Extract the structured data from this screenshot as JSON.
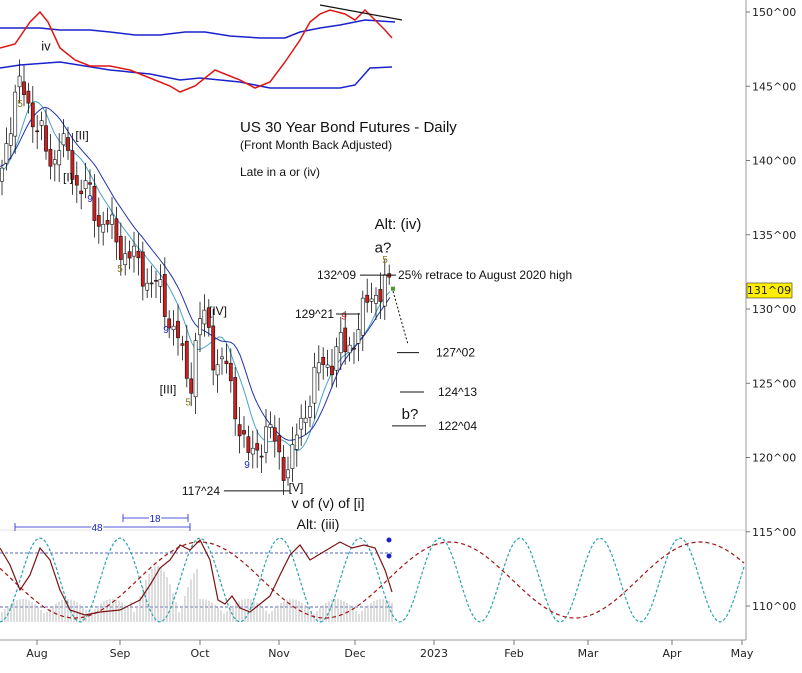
{
  "chart_data": {
    "type": "candlestick",
    "title": "US 30 Year Bond Futures - Daily",
    "subtitle": "(Front Month Back Adjusted)",
    "note": "Late in a or (iv)",
    "price_axis": {
      "min": 108.5,
      "max": 151,
      "ticks": [
        "150^00",
        "145^00",
        "140^00",
        "135^00",
        "130^00",
        "125^00",
        "120^00",
        "115^00",
        "110^00"
      ],
      "tick_values": [
        150,
        145,
        140,
        135,
        130,
        125,
        120,
        115,
        110
      ],
      "current_price_label": "131^09",
      "current_price": 131.28
    },
    "months": [
      "Aug",
      "Sep",
      "Oct",
      "Nov",
      "Dec",
      "2023",
      "Feb",
      "Mar",
      "Apr",
      "May"
    ],
    "price_path": [
      [
        0,
        139
      ],
      [
        6,
        141.5
      ],
      [
        12,
        143
      ],
      [
        18,
        144.5
      ],
      [
        23,
        145
      ],
      [
        30,
        144
      ],
      [
        36,
        142
      ],
      [
        44,
        141
      ],
      [
        52,
        140
      ],
      [
        58,
        141.2
      ],
      [
        64,
        140.5
      ],
      [
        70,
        140
      ],
      [
        78,
        138.5
      ],
      [
        85,
        138
      ],
      [
        92,
        137
      ],
      [
        98,
        136.2
      ],
      [
        104,
        136
      ],
      [
        112,
        135
      ],
      [
        118,
        134.6
      ],
      [
        124,
        134
      ],
      [
        130,
        133.5
      ],
      [
        136,
        133
      ],
      [
        142,
        132.8
      ],
      [
        148,
        132
      ],
      [
        154,
        131.5
      ],
      [
        160,
        131
      ],
      [
        166,
        130.2
      ],
      [
        172,
        129
      ],
      [
        178,
        127.8
      ],
      [
        184,
        126
      ],
      [
        190,
        125
      ],
      [
        196,
        128
      ],
      [
        202,
        129.6
      ],
      [
        208,
        128.5
      ],
      [
        214,
        127
      ],
      [
        220,
        126.4
      ],
      [
        226,
        126
      ],
      [
        232,
        124
      ],
      [
        238,
        123
      ],
      [
        244,
        121
      ],
      [
        250,
        119.5
      ],
      [
        256,
        120.5
      ],
      [
        262,
        121.5
      ],
      [
        268,
        122
      ],
      [
        274,
        120.8
      ],
      [
        280,
        120
      ],
      [
        286,
        119.5
      ],
      [
        292,
        119.8
      ],
      [
        298,
        121.5
      ],
      [
        304,
        123
      ],
      [
        310,
        124.5
      ],
      [
        316,
        125.5
      ],
      [
        322,
        126
      ],
      [
        328,
        126.5
      ],
      [
        334,
        127
      ],
      [
        340,
        127.4
      ],
      [
        346,
        127
      ],
      [
        352,
        128
      ],
      [
        358,
        129
      ],
      [
        364,
        129.6
      ],
      [
        370,
        130.6
      ],
      [
        376,
        131.5
      ],
      [
        382,
        131.4
      ],
      [
        388,
        131.3
      ]
    ],
    "elliott_labels": [
      {
        "text": "iv",
        "price": 147.4
      },
      {
        "text": "[II]",
        "price": 141.4
      },
      {
        "text": "[I]",
        "price": 138.6
      },
      {
        "text": "[IV]",
        "price": 129.6
      },
      {
        "text": "[III]",
        "price": 124.3
      },
      {
        "text": "[V]",
        "price": 117.7
      },
      {
        "text": "v of (v) of [i]",
        "price": 116.6
      },
      {
        "text": "Alt: (iii)",
        "price": 115.2
      },
      {
        "text": "Alt: (iv)",
        "price": 135.4
      },
      {
        "text": "a?",
        "price": 133.8
      },
      {
        "text": "b?",
        "price": 122.6
      }
    ],
    "count_labels": [
      {
        "text": "5",
        "price": 143.6
      },
      {
        "text": "9",
        "price": 137.2
      },
      {
        "text": "5",
        "price": 132.5
      },
      {
        "text": "9",
        "price": 128.4
      },
      {
        "text": "5",
        "price": 123.5
      },
      {
        "text": "9",
        "price": 119.3
      },
      {
        "text": "9",
        "price": 129.3
      },
      {
        "text": "5",
        "price": 133.1
      }
    ],
    "price_levels": [
      {
        "label": "132^09",
        "price": 132.28
      },
      {
        "label": "129^21",
        "price": 129.66
      },
      {
        "label": "117^24",
        "price": 117.75
      },
      {
        "label": "127^02",
        "price": 127.06
      },
      {
        "label": "124^13",
        "price": 124.41
      },
      {
        "label": "122^04",
        "price": 122.13
      }
    ],
    "retrace_note": "25% retrace to August 2020 high",
    "cycle_markers": [
      "48",
      "18"
    ],
    "colors": {
      "bear_candle": "#cc1f1f",
      "bull_candle": "#ffffff",
      "ma_fast": "#4aa3c8",
      "ma_slow": "#2233aa",
      "upper_red": "#e01515",
      "upper_blue": "#1a22cc",
      "cycle_teal": "#2aa3b0",
      "cycle_dark_red": "#a01515",
      "oscillator": "#7a1212"
    }
  },
  "labels": {
    "title": "US 30 Year Bond Futures - Daily",
    "subtitle": "(Front Month Back Adjusted)",
    "note": "Late in a or (iv)"
  }
}
